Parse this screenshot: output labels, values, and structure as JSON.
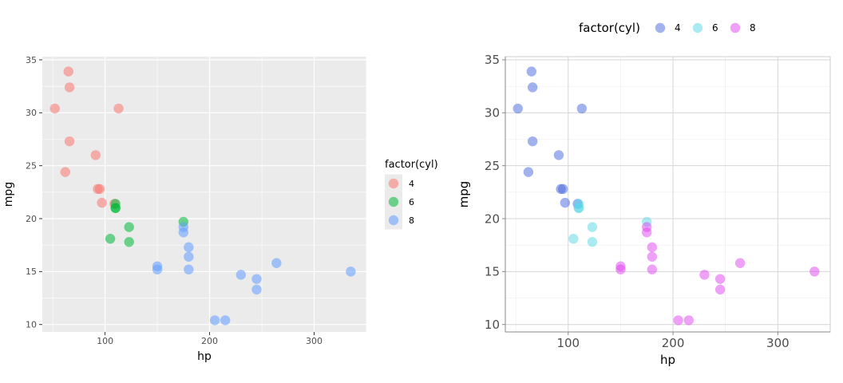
{
  "chart_data": [
    {
      "type": "scatter",
      "title": "",
      "xlabel": "hp",
      "ylabel": "mpg",
      "xlim": [
        40,
        350
      ],
      "ylim": [
        9.3,
        35.3
      ],
      "xticks": [
        100,
        200,
        300
      ],
      "yticks": [
        10,
        15,
        20,
        25,
        30,
        35
      ],
      "xtick_labels": [
        "100",
        "200",
        "300"
      ],
      "ytick_labels": [
        "10",
        "15",
        "20",
        "25",
        "30",
        "35"
      ],
      "theme": "gray",
      "grid": true,
      "legend": {
        "title": "factor(cyl)",
        "position": "right",
        "entries": [
          "4",
          "6",
          "8"
        ]
      },
      "series": [
        {
          "name": "4",
          "color": "#F8766D",
          "x": [
            93,
            62,
            95,
            66,
            52,
            65,
            97,
            66,
            91,
            113,
            109
          ],
          "y": [
            22.8,
            24.4,
            22.8,
            32.4,
            30.4,
            33.9,
            21.5,
            27.3,
            26.0,
            30.4,
            21.4
          ]
        },
        {
          "name": "6",
          "color": "#00BA38",
          "x": [
            110,
            110,
            110,
            105,
            123,
            123,
            175
          ],
          "y": [
            21.0,
            21.0,
            21.4,
            18.1,
            19.2,
            17.8,
            19.7
          ]
        },
        {
          "name": "8",
          "color": "#619CFF",
          "x": [
            175,
            245,
            180,
            180,
            180,
            205,
            215,
            230,
            150,
            150,
            245,
            175,
            264,
            335
          ],
          "y": [
            18.7,
            14.3,
            16.4,
            17.3,
            15.2,
            10.4,
            10.4,
            14.7,
            15.5,
            15.2,
            13.3,
            19.2,
            15.8,
            15.0
          ]
        }
      ]
    },
    {
      "type": "scatter",
      "title": "",
      "xlabel": "hp",
      "ylabel": "mpg",
      "xlim": [
        40,
        350
      ],
      "ylim": [
        9.3,
        35.3
      ],
      "xticks": [
        100,
        200,
        300
      ],
      "yticks": [
        10,
        15,
        20,
        25,
        30,
        35
      ],
      "xtick_labels": [
        "100",
        "200",
        "300"
      ],
      "ytick_labels": [
        "10",
        "15",
        "20",
        "25",
        "30",
        "35"
      ],
      "theme": "light",
      "grid": true,
      "legend": {
        "title": "factor(cyl)",
        "position": "top",
        "entries": [
          "4",
          "6",
          "8"
        ]
      },
      "series": [
        {
          "name": "4",
          "color": "#4466DD",
          "x": [
            93,
            62,
            95,
            66,
            52,
            65,
            97,
            66,
            91,
            113,
            109
          ],
          "y": [
            22.8,
            24.4,
            22.8,
            32.4,
            30.4,
            33.9,
            21.5,
            27.3,
            26.0,
            30.4,
            21.4
          ]
        },
        {
          "name": "6",
          "color": "#55D8E6",
          "x": [
            110,
            110,
            110,
            105,
            123,
            123,
            175
          ],
          "y": [
            21.0,
            21.0,
            21.4,
            18.1,
            19.2,
            17.8,
            19.7
          ]
        },
        {
          "name": "8",
          "color": "#DD44EE",
          "x": [
            175,
            245,
            180,
            180,
            180,
            205,
            215,
            230,
            150,
            150,
            245,
            175,
            264,
            335
          ],
          "y": [
            18.7,
            14.3,
            16.4,
            17.3,
            15.2,
            10.4,
            10.4,
            14.7,
            15.5,
            15.2,
            13.3,
            19.2,
            15.8,
            15.0
          ]
        }
      ]
    }
  ]
}
